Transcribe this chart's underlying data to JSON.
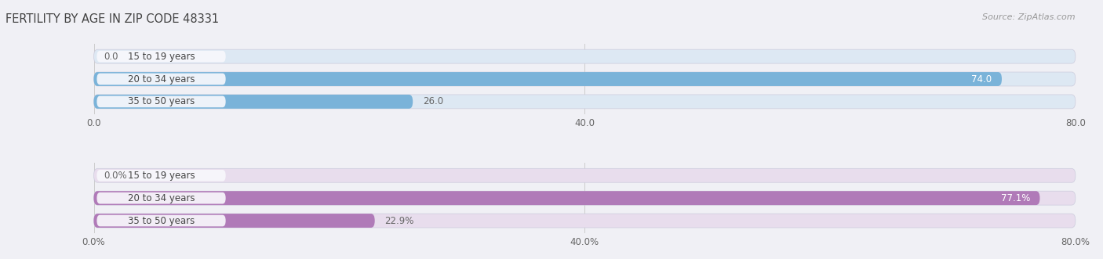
{
  "title": "FERTILITY BY AGE IN ZIP CODE 48331",
  "source": "Source: ZipAtlas.com",
  "top_section": {
    "categories": [
      "15 to 19 years",
      "20 to 34 years",
      "35 to 50 years"
    ],
    "values": [
      0.0,
      74.0,
      26.0
    ],
    "bar_color": "#7ab3d9",
    "bar_color_light": "#aacce8",
    "bar_bg_color": "#dde8f3",
    "xlim": [
      0,
      80
    ],
    "xticks": [
      0.0,
      40.0,
      80.0
    ],
    "xtick_labels": [
      "0.0",
      "40.0",
      "80.0"
    ]
  },
  "bottom_section": {
    "categories": [
      "15 to 19 years",
      "20 to 34 years",
      "35 to 50 years"
    ],
    "values": [
      0.0,
      77.1,
      22.9
    ],
    "bar_color": "#b07ab8",
    "bar_color_light": "#cca8d4",
    "bar_bg_color": "#e8dded",
    "xlim": [
      0,
      80
    ],
    "xticks": [
      0.0,
      40.0,
      80.0
    ],
    "xtick_labels": [
      "0.0%",
      "40.0%",
      "80.0%"
    ]
  },
  "fig_bg": "#f0f0f5",
  "title_color": "#444444",
  "source_color": "#999999",
  "label_bg": "#f8f8fc",
  "label_text_color": "#444444",
  "value_color_inside": "#ffffff",
  "value_color_outside": "#666666",
  "grid_color": "#cccccc"
}
